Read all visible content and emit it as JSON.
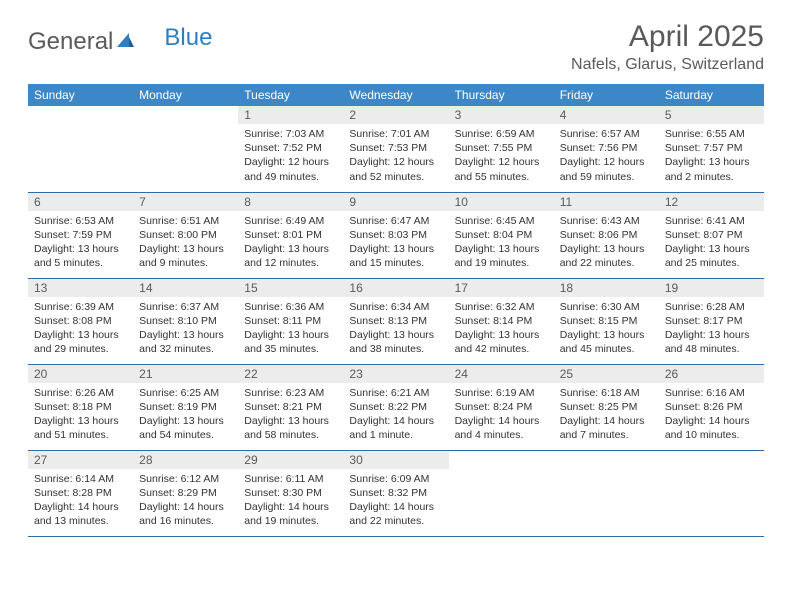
{
  "logo": {
    "part1": "General",
    "part2": "Blue"
  },
  "title": "April 2025",
  "location": "Nafels, Glarus, Switzerland",
  "header_bg": "#3c87c7",
  "header_fg": "#ffffff",
  "daynum_bg": "#ececec",
  "border_color": "#2f6ca3",
  "text_color": "#333333",
  "muted_color": "#5a5a5a",
  "background_color": "#ffffff",
  "logo_accent": "#2f7ec2",
  "font_family": "Arial",
  "title_fontsize": 30,
  "location_fontsize": 16,
  "header_fontsize": 12,
  "daynum_fontsize": 12,
  "body_fontsize": 10.5,
  "columns": [
    "Sunday",
    "Monday",
    "Tuesday",
    "Wednesday",
    "Thursday",
    "Friday",
    "Saturday"
  ],
  "weeks": [
    [
      null,
      null,
      {
        "n": "1",
        "sunrise": "7:03 AM",
        "sunset": "7:52 PM",
        "daylight": "12 hours and 49 minutes."
      },
      {
        "n": "2",
        "sunrise": "7:01 AM",
        "sunset": "7:53 PM",
        "daylight": "12 hours and 52 minutes."
      },
      {
        "n": "3",
        "sunrise": "6:59 AM",
        "sunset": "7:55 PM",
        "daylight": "12 hours and 55 minutes."
      },
      {
        "n": "4",
        "sunrise": "6:57 AM",
        "sunset": "7:56 PM",
        "daylight": "12 hours and 59 minutes."
      },
      {
        "n": "5",
        "sunrise": "6:55 AM",
        "sunset": "7:57 PM",
        "daylight": "13 hours and 2 minutes."
      }
    ],
    [
      {
        "n": "6",
        "sunrise": "6:53 AM",
        "sunset": "7:59 PM",
        "daylight": "13 hours and 5 minutes."
      },
      {
        "n": "7",
        "sunrise": "6:51 AM",
        "sunset": "8:00 PM",
        "daylight": "13 hours and 9 minutes."
      },
      {
        "n": "8",
        "sunrise": "6:49 AM",
        "sunset": "8:01 PM",
        "daylight": "13 hours and 12 minutes."
      },
      {
        "n": "9",
        "sunrise": "6:47 AM",
        "sunset": "8:03 PM",
        "daylight": "13 hours and 15 minutes."
      },
      {
        "n": "10",
        "sunrise": "6:45 AM",
        "sunset": "8:04 PM",
        "daylight": "13 hours and 19 minutes."
      },
      {
        "n": "11",
        "sunrise": "6:43 AM",
        "sunset": "8:06 PM",
        "daylight": "13 hours and 22 minutes."
      },
      {
        "n": "12",
        "sunrise": "6:41 AM",
        "sunset": "8:07 PM",
        "daylight": "13 hours and 25 minutes."
      }
    ],
    [
      {
        "n": "13",
        "sunrise": "6:39 AM",
        "sunset": "8:08 PM",
        "daylight": "13 hours and 29 minutes."
      },
      {
        "n": "14",
        "sunrise": "6:37 AM",
        "sunset": "8:10 PM",
        "daylight": "13 hours and 32 minutes."
      },
      {
        "n": "15",
        "sunrise": "6:36 AM",
        "sunset": "8:11 PM",
        "daylight": "13 hours and 35 minutes."
      },
      {
        "n": "16",
        "sunrise": "6:34 AM",
        "sunset": "8:13 PM",
        "daylight": "13 hours and 38 minutes."
      },
      {
        "n": "17",
        "sunrise": "6:32 AM",
        "sunset": "8:14 PM",
        "daylight": "13 hours and 42 minutes."
      },
      {
        "n": "18",
        "sunrise": "6:30 AM",
        "sunset": "8:15 PM",
        "daylight": "13 hours and 45 minutes."
      },
      {
        "n": "19",
        "sunrise": "6:28 AM",
        "sunset": "8:17 PM",
        "daylight": "13 hours and 48 minutes."
      }
    ],
    [
      {
        "n": "20",
        "sunrise": "6:26 AM",
        "sunset": "8:18 PM",
        "daylight": "13 hours and 51 minutes."
      },
      {
        "n": "21",
        "sunrise": "6:25 AM",
        "sunset": "8:19 PM",
        "daylight": "13 hours and 54 minutes."
      },
      {
        "n": "22",
        "sunrise": "6:23 AM",
        "sunset": "8:21 PM",
        "daylight": "13 hours and 58 minutes."
      },
      {
        "n": "23",
        "sunrise": "6:21 AM",
        "sunset": "8:22 PM",
        "daylight": "14 hours and 1 minute."
      },
      {
        "n": "24",
        "sunrise": "6:19 AM",
        "sunset": "8:24 PM",
        "daylight": "14 hours and 4 minutes."
      },
      {
        "n": "25",
        "sunrise": "6:18 AM",
        "sunset": "8:25 PM",
        "daylight": "14 hours and 7 minutes."
      },
      {
        "n": "26",
        "sunrise": "6:16 AM",
        "sunset": "8:26 PM",
        "daylight": "14 hours and 10 minutes."
      }
    ],
    [
      {
        "n": "27",
        "sunrise": "6:14 AM",
        "sunset": "8:28 PM",
        "daylight": "14 hours and 13 minutes."
      },
      {
        "n": "28",
        "sunrise": "6:12 AM",
        "sunset": "8:29 PM",
        "daylight": "14 hours and 16 minutes."
      },
      {
        "n": "29",
        "sunrise": "6:11 AM",
        "sunset": "8:30 PM",
        "daylight": "14 hours and 19 minutes."
      },
      {
        "n": "30",
        "sunrise": "6:09 AM",
        "sunset": "8:32 PM",
        "daylight": "14 hours and 22 minutes."
      },
      null,
      null,
      null
    ]
  ],
  "labels": {
    "sunrise_prefix": "Sunrise: ",
    "sunset_prefix": "Sunset: ",
    "daylight_prefix": "Daylight: "
  }
}
